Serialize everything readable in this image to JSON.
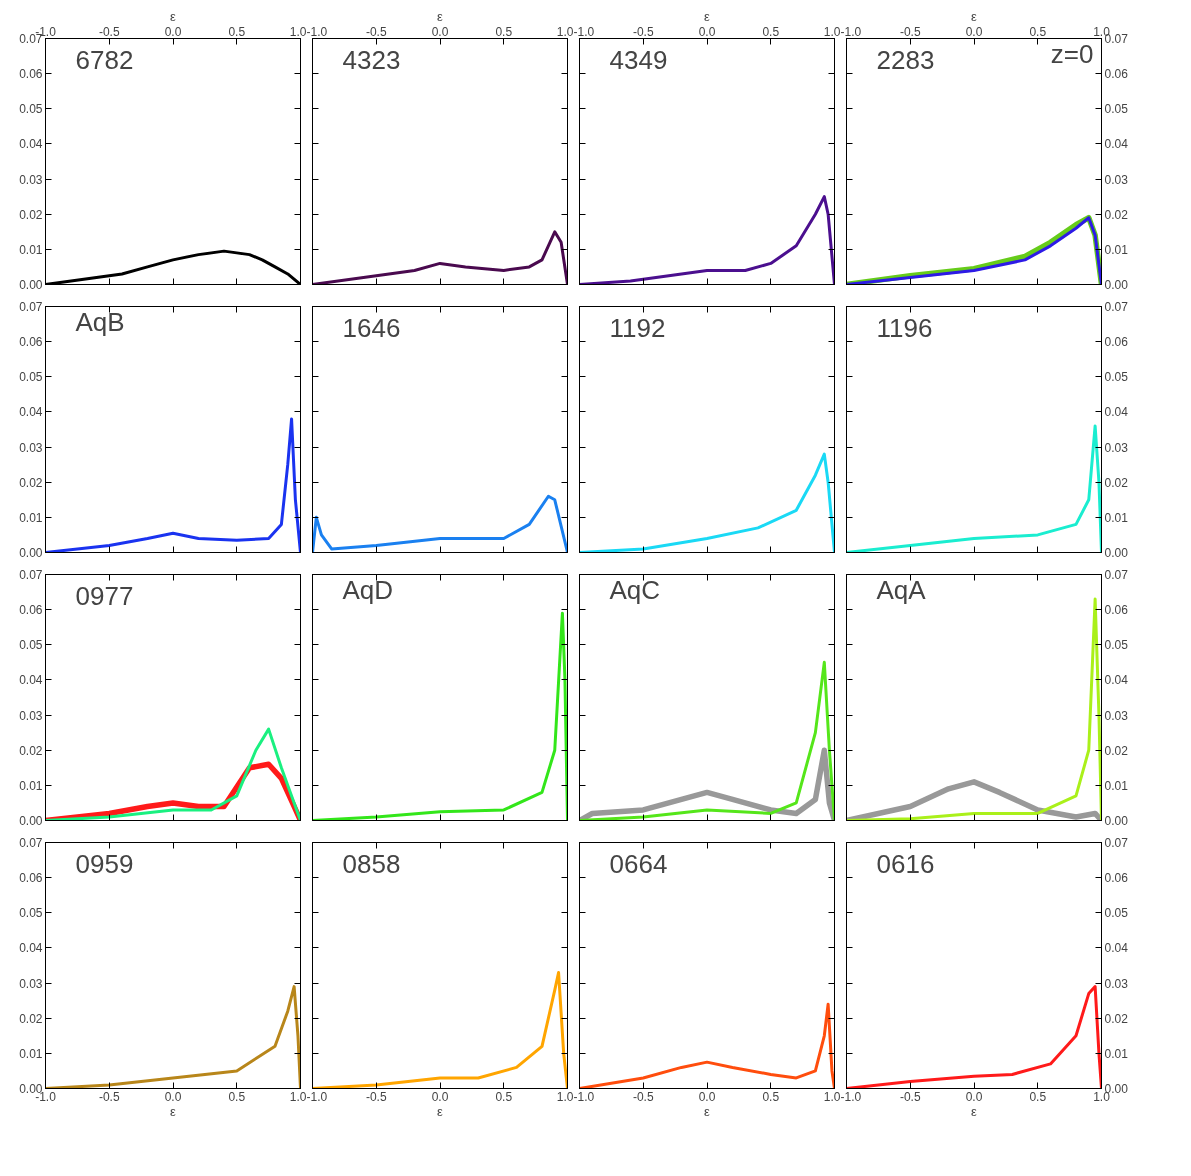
{
  "chart_data": [
    {
      "type": "line",
      "xlim": [
        -1,
        1
      ],
      "ylim": [
        0,
        0.07
      ],
      "x2lim": [
        -1,
        1
      ],
      "x2label": "ε",
      "tick_labels": "y",
      "annotations": [
        "6782"
      ],
      "xticks": [
        {
          "value": -1,
          "label": null
        },
        {
          "value": -0.5,
          "label": null
        },
        {
          "value": 0,
          "label": null
        },
        {
          "value": 0.5,
          "label": null
        },
        {
          "value": 1,
          "label": null
        }
      ],
      "x2ticks": [
        {
          "value": -1,
          "label": "-1.0"
        },
        {
          "value": -0.5,
          "label": "-0.5"
        },
        {
          "value": 0,
          "label": "0.0"
        },
        {
          "value": 0.5,
          "label": "0.5"
        },
        {
          "value": 1,
          "label": "1.0"
        }
      ],
      "yticks": [
        {
          "value": 0,
          "label": "0.00"
        },
        {
          "value": 0.01,
          "label": "0.01"
        },
        {
          "value": 0.02,
          "label": "0.02"
        },
        {
          "value": 0.03,
          "label": "0.03"
        },
        {
          "value": 0.04,
          "label": "0.04"
        },
        {
          "value": 0.05,
          "label": "0.05"
        },
        {
          "value": 0.06,
          "label": "0.06"
        },
        {
          "value": 0.07,
          "label": "0.07"
        }
      ],
      "series": [
        {
          "color": "#000000",
          "x": [
            -1,
            -0.8,
            -0.6,
            -0.4,
            -0.2,
            0,
            0.2,
            0.4,
            0.5,
            0.6,
            0.7,
            0.8,
            0.9,
            1
          ],
          "values": [
            0,
            0.001,
            0.002,
            0.003,
            0.005,
            0.007,
            0.0085,
            0.0095,
            0.009,
            0.0085,
            0.007,
            0.005,
            0.003,
            0
          ]
        }
      ]
    },
    {
      "type": "line",
      "xlim": [
        -1,
        1
      ],
      "ylim": [
        0,
        0.07
      ],
      "x2lim": [
        -1,
        1
      ],
      "x2label": "ε",
      "tick_labels": false,
      "annotations": [
        "4323"
      ],
      "xticks": [
        {
          "value": -1,
          "label": null
        },
        {
          "value": -0.5,
          "label": null
        },
        {
          "value": 0,
          "label": null
        },
        {
          "value": 0.5,
          "label": null
        },
        {
          "value": 1,
          "label": null
        }
      ],
      "x2ticks": [
        {
          "value": -1,
          "label": "-1.0"
        },
        {
          "value": -0.5,
          "label": "-0.5"
        },
        {
          "value": 0,
          "label": "0.0"
        },
        {
          "value": 0.5,
          "label": "0.5"
        },
        {
          "value": 1,
          "label": "1.0"
        }
      ],
      "yticks": [
        {
          "value": 0,
          "label": null
        },
        {
          "value": 0.01,
          "label": null
        },
        {
          "value": 0.02,
          "label": null
        },
        {
          "value": 0.03,
          "label": null
        },
        {
          "value": 0.04,
          "label": null
        },
        {
          "value": 0.05,
          "label": null
        },
        {
          "value": 0.06,
          "label": null
        },
        {
          "value": 0.07,
          "label": null
        }
      ],
      "series": [
        {
          "color": "#4a0a4f",
          "x": [
            -1,
            -0.6,
            -0.2,
            0,
            0.2,
            0.5,
            0.7,
            0.8,
            0.9,
            0.95,
            1
          ],
          "values": [
            0,
            0.002,
            0.004,
            0.006,
            0.005,
            0.004,
            0.005,
            0.007,
            0.015,
            0.012,
            0
          ]
        }
      ]
    },
    {
      "type": "line",
      "xlim": [
        -1,
        1
      ],
      "ylim": [
        0,
        0.07
      ],
      "x2lim": [
        -1,
        1
      ],
      "x2label": "ε",
      "tick_labels": false,
      "annotations": [
        "4349"
      ],
      "xticks": [
        {
          "value": -1,
          "label": null
        },
        {
          "value": -0.5,
          "label": null
        },
        {
          "value": 0,
          "label": null
        },
        {
          "value": 0.5,
          "label": null
        },
        {
          "value": 1,
          "label": null
        }
      ],
      "x2ticks": [
        {
          "value": -1,
          "label": "-1.0"
        },
        {
          "value": -0.5,
          "label": "-0.5"
        },
        {
          "value": 0,
          "label": "0.0"
        },
        {
          "value": 0.5,
          "label": "0.5"
        },
        {
          "value": 1,
          "label": "1.0"
        }
      ],
      "yticks": [
        {
          "value": 0,
          "label": null
        },
        {
          "value": 0.01,
          "label": null
        },
        {
          "value": 0.02,
          "label": null
        },
        {
          "value": 0.03,
          "label": null
        },
        {
          "value": 0.04,
          "label": null
        },
        {
          "value": 0.05,
          "label": null
        },
        {
          "value": 0.06,
          "label": null
        },
        {
          "value": 0.07,
          "label": null
        }
      ],
      "series": [
        {
          "color": "#4b0f8f",
          "x": [
            -1,
            -0.6,
            -0.2,
            0,
            0.3,
            0.5,
            0.7,
            0.85,
            0.92,
            0.95,
            1
          ],
          "values": [
            0,
            0.001,
            0.003,
            0.004,
            0.004,
            0.006,
            0.011,
            0.02,
            0.025,
            0.02,
            0
          ]
        }
      ]
    },
    {
      "type": "line",
      "xlim": [
        -1,
        1
      ],
      "y2lim": [
        0,
        0.07
      ],
      "x2lim": [
        -1,
        1
      ],
      "x2label": "ε",
      "tick_labels": "y",
      "annotations": [
        "2283",
        "z=0"
      ],
      "xticks": [
        {
          "value": -1,
          "label": null
        },
        {
          "value": -0.5,
          "label": null
        },
        {
          "value": 0,
          "label": null
        },
        {
          "value": 0.5,
          "label": null
        },
        {
          "value": 1,
          "label": null
        }
      ],
      "x2ticks": [
        {
          "value": -1,
          "label": "-1.0"
        },
        {
          "value": -0.5,
          "label": "-0.5"
        },
        {
          "value": 0,
          "label": "0.0"
        },
        {
          "value": 0.5,
          "label": "0.5"
        },
        {
          "value": 1,
          "label": "1.0"
        }
      ],
      "y2ticks": [
        {
          "value": 0,
          "label": "0.00"
        },
        {
          "value": 0.01,
          "label": "0.01"
        },
        {
          "value": 0.02,
          "label": "0.02"
        },
        {
          "value": 0.03,
          "label": "0.03"
        },
        {
          "value": 0.04,
          "label": "0.04"
        },
        {
          "value": 0.05,
          "label": "0.05"
        },
        {
          "value": 0.06,
          "label": "0.06"
        },
        {
          "value": 0.07,
          "label": "0.07"
        }
      ],
      "series": [
        {
          "color": "#66cc1a",
          "axis": "y2",
          "x": [
            -1,
            -0.5,
            0,
            0.4,
            0.6,
            0.8,
            0.9,
            0.95,
            1
          ],
          "values": [
            0,
            0.0025,
            0.0045,
            0.008,
            0.012,
            0.017,
            0.019,
            0.014,
            0
          ]
        },
        {
          "color": "#2d1ae6",
          "axis": "y2",
          "x": [
            -1,
            -0.5,
            0,
            0.4,
            0.6,
            0.8,
            0.9,
            0.95,
            1
          ],
          "values": [
            0,
            0.002,
            0.004,
            0.007,
            0.011,
            0.016,
            0.019,
            0.014,
            0
          ]
        }
      ]
    },
    {
      "type": "line",
      "xlim": [
        -1,
        1
      ],
      "ylim": [
        0,
        0.07
      ],
      "tick_labels": "y",
      "annotations": [
        "AqB"
      ],
      "xticks": [
        {
          "value": -1,
          "label": null
        },
        {
          "value": -0.5,
          "label": null
        },
        {
          "value": 0,
          "label": null
        },
        {
          "value": 0.5,
          "label": null
        },
        {
          "value": 1,
          "label": null
        }
      ],
      "yticks": [
        {
          "value": 0,
          "label": "0.00"
        },
        {
          "value": 0.01,
          "label": "0.01"
        },
        {
          "value": 0.02,
          "label": "0.02"
        },
        {
          "value": 0.03,
          "label": "0.03"
        },
        {
          "value": 0.04,
          "label": "0.04"
        },
        {
          "value": 0.05,
          "label": "0.05"
        },
        {
          "value": 0.06,
          "label": "0.06"
        },
        {
          "value": 0.07,
          "label": "0.07"
        }
      ],
      "series": [
        {
          "color": "#1a33f0",
          "x": [
            -1,
            -0.5,
            -0.2,
            0,
            0.2,
            0.5,
            0.75,
            0.85,
            0.9,
            0.93,
            0.96,
            1
          ],
          "values": [
            0,
            0.002,
            0.004,
            0.0055,
            0.004,
            0.0035,
            0.004,
            0.008,
            0.025,
            0.038,
            0.015,
            0
          ]
        }
      ]
    },
    {
      "type": "line",
      "xlim": [
        -1,
        1
      ],
      "ylim": [
        0,
        0.07
      ],
      "tick_labels": false,
      "annotations": [
        "1646"
      ],
      "xticks": [
        {
          "value": -1,
          "label": null
        },
        {
          "value": -0.5,
          "label": null
        },
        {
          "value": 0,
          "label": null
        },
        {
          "value": 0.5,
          "label": null
        },
        {
          "value": 1,
          "label": null
        }
      ],
      "yticks": [
        {
          "value": 0,
          "label": null
        },
        {
          "value": 0.01,
          "label": null
        },
        {
          "value": 0.02,
          "label": null
        },
        {
          "value": 0.03,
          "label": null
        },
        {
          "value": 0.04,
          "label": null
        },
        {
          "value": 0.05,
          "label": null
        },
        {
          "value": 0.06,
          "label": null
        },
        {
          "value": 0.07,
          "label": null
        }
      ],
      "series": [
        {
          "color": "#1a80f0",
          "x": [
            -1,
            -0.97,
            -0.93,
            -0.85,
            -0.5,
            0,
            0.5,
            0.7,
            0.85,
            0.9,
            1
          ],
          "values": [
            0,
            0.01,
            0.005,
            0.001,
            0.002,
            0.004,
            0.004,
            0.008,
            0.016,
            0.015,
            0
          ]
        }
      ]
    },
    {
      "type": "line",
      "xlim": [
        -1,
        1
      ],
      "ylim": [
        0,
        0.07
      ],
      "tick_labels": false,
      "annotations": [
        "1192"
      ],
      "xticks": [
        {
          "value": -1,
          "label": null
        },
        {
          "value": -0.5,
          "label": null
        },
        {
          "value": 0,
          "label": null
        },
        {
          "value": 0.5,
          "label": null
        },
        {
          "value": 1,
          "label": null
        }
      ],
      "yticks": [
        {
          "value": 0,
          "label": null
        },
        {
          "value": 0.01,
          "label": null
        },
        {
          "value": 0.02,
          "label": null
        },
        {
          "value": 0.03,
          "label": null
        },
        {
          "value": 0.04,
          "label": null
        },
        {
          "value": 0.05,
          "label": null
        },
        {
          "value": 0.06,
          "label": null
        },
        {
          "value": 0.07,
          "label": null
        }
      ],
      "series": [
        {
          "color": "#1ad9f5",
          "x": [
            -1,
            -0.5,
            0,
            0.4,
            0.7,
            0.85,
            0.92,
            0.95,
            1
          ],
          "values": [
            0,
            0.001,
            0.004,
            0.007,
            0.012,
            0.022,
            0.028,
            0.02,
            0
          ]
        }
      ]
    },
    {
      "type": "line",
      "xlim": [
        -1,
        1
      ],
      "y2lim": [
        0,
        0.07
      ],
      "tick_labels": "y",
      "annotations": [
        "1196"
      ],
      "xticks": [
        {
          "value": -1,
          "label": null
        },
        {
          "value": -0.5,
          "label": null
        },
        {
          "value": 0,
          "label": null
        },
        {
          "value": 0.5,
          "label": null
        },
        {
          "value": 1,
          "label": null
        }
      ],
      "y2ticks": [
        {
          "value": 0,
          "label": "0.00"
        },
        {
          "value": 0.01,
          "label": "0.01"
        },
        {
          "value": 0.02,
          "label": "0.02"
        },
        {
          "value": 0.03,
          "label": "0.03"
        },
        {
          "value": 0.04,
          "label": "0.04"
        },
        {
          "value": 0.05,
          "label": "0.05"
        },
        {
          "value": 0.06,
          "label": "0.06"
        },
        {
          "value": 0.07,
          "label": "0.07"
        }
      ],
      "series": [
        {
          "color": "#1aedd0",
          "axis": "y2",
          "x": [
            -1,
            -0.5,
            0,
            0.5,
            0.8,
            0.9,
            0.95,
            0.98,
            1
          ],
          "values": [
            0,
            0.002,
            0.004,
            0.005,
            0.008,
            0.015,
            0.036,
            0.02,
            0
          ]
        }
      ]
    },
    {
      "type": "line",
      "xlim": [
        -1,
        1
      ],
      "ylim": [
        0,
        0.07
      ],
      "tick_labels": "y",
      "annotations": [
        "0977"
      ],
      "xticks": [
        {
          "value": -1,
          "label": null
        },
        {
          "value": -0.5,
          "label": null
        },
        {
          "value": 0,
          "label": null
        },
        {
          "value": 0.5,
          "label": null
        },
        {
          "value": 1,
          "label": null
        }
      ],
      "yticks": [
        {
          "value": 0,
          "label": "0.00"
        },
        {
          "value": 0.01,
          "label": "0.01"
        },
        {
          "value": 0.02,
          "label": "0.02"
        },
        {
          "value": 0.03,
          "label": "0.03"
        },
        {
          "value": 0.04,
          "label": "0.04"
        },
        {
          "value": 0.05,
          "label": "0.05"
        },
        {
          "value": 0.06,
          "label": "0.06"
        },
        {
          "value": 0.07,
          "label": "0.07"
        }
      ],
      "series": [
        {
          "color": "#ff1a1a",
          "x": [
            -1,
            -0.5,
            -0.2,
            0,
            0.2,
            0.4,
            0.6,
            0.75,
            0.85,
            0.95,
            1
          ],
          "values": [
            0,
            0.002,
            0.004,
            0.005,
            0.004,
            0.004,
            0.015,
            0.016,
            0.012,
            0.004,
            0
          ]
        },
        {
          "color": "#1af080",
          "x": [
            -1,
            -0.5,
            0,
            0.3,
            0.5,
            0.65,
            0.75,
            0.85,
            0.95,
            1
          ],
          "values": [
            0,
            0.001,
            0.003,
            0.003,
            0.007,
            0.02,
            0.026,
            0.015,
            0.005,
            0
          ]
        }
      ]
    },
    {
      "type": "line",
      "xlim": [
        -1,
        1
      ],
      "ylim": [
        0,
        0.07
      ],
      "tick_labels": false,
      "annotations": [
        "AqD"
      ],
      "xticks": [
        {
          "value": -1,
          "label": null
        },
        {
          "value": -0.5,
          "label": null
        },
        {
          "value": 0,
          "label": null
        },
        {
          "value": 0.5,
          "label": null
        },
        {
          "value": 1,
          "label": null
        }
      ],
      "yticks": [
        {
          "value": 0,
          "label": null
        },
        {
          "value": 0.01,
          "label": null
        },
        {
          "value": 0.02,
          "label": null
        },
        {
          "value": 0.03,
          "label": null
        },
        {
          "value": 0.04,
          "label": null
        },
        {
          "value": 0.05,
          "label": null
        },
        {
          "value": 0.06,
          "label": null
        },
        {
          "value": 0.07,
          "label": null
        }
      ],
      "series": [
        {
          "color": "#33e61a",
          "x": [
            -1,
            -0.5,
            0,
            0.5,
            0.8,
            0.9,
            0.96,
            0.98,
            1
          ],
          "values": [
            0,
            0.001,
            0.0025,
            0.003,
            0.008,
            0.02,
            0.059,
            0.04,
            0
          ]
        }
      ]
    },
    {
      "type": "line",
      "xlim": [
        -1,
        1
      ],
      "ylim": [
        0,
        0.07
      ],
      "tick_labels": false,
      "annotations": [
        "AqC"
      ],
      "xticks": [
        {
          "value": -1,
          "label": null
        },
        {
          "value": -0.5,
          "label": null
        },
        {
          "value": 0,
          "label": null
        },
        {
          "value": 0.5,
          "label": null
        },
        {
          "value": 1,
          "label": null
        }
      ],
      "yticks": [
        {
          "value": 0,
          "label": null
        },
        {
          "value": 0.01,
          "label": null
        },
        {
          "value": 0.02,
          "label": null
        },
        {
          "value": 0.03,
          "label": null
        },
        {
          "value": 0.04,
          "label": null
        },
        {
          "value": 0.05,
          "label": null
        },
        {
          "value": 0.06,
          "label": null
        },
        {
          "value": 0.07,
          "label": null
        }
      ],
      "series": [
        {
          "color": "#999999",
          "x": [
            -1,
            -0.9,
            -0.5,
            -0.2,
            0,
            0.2,
            0.5,
            0.7,
            0.85,
            0.92,
            0.96,
            1
          ],
          "values": [
            0,
            0.002,
            0.003,
            0.006,
            0.008,
            0.006,
            0.003,
            0.002,
            0.006,
            0.02,
            0.005,
            0
          ]
        },
        {
          "color": "#55e61a",
          "x": [
            -1,
            -0.5,
            0,
            0.5,
            0.7,
            0.85,
            0.92,
            0.96,
            1
          ],
          "values": [
            0,
            0.001,
            0.003,
            0.002,
            0.005,
            0.025,
            0.045,
            0.02,
            0
          ]
        }
      ]
    },
    {
      "type": "line",
      "xlim": [
        -1,
        1
      ],
      "y2lim": [
        0,
        0.07
      ],
      "tick_labels": "y",
      "annotations": [
        "AqA"
      ],
      "xticks": [
        {
          "value": -1,
          "label": null
        },
        {
          "value": -0.5,
          "label": null
        },
        {
          "value": 0,
          "label": null
        },
        {
          "value": 0.5,
          "label": null
        },
        {
          "value": 1,
          "label": null
        }
      ],
      "y2ticks": [
        {
          "value": 0,
          "label": "0.00"
        },
        {
          "value": 0.01,
          "label": "0.01"
        },
        {
          "value": 0.02,
          "label": "0.02"
        },
        {
          "value": 0.03,
          "label": "0.03"
        },
        {
          "value": 0.04,
          "label": "0.04"
        },
        {
          "value": 0.05,
          "label": "0.05"
        },
        {
          "value": 0.06,
          "label": "0.06"
        },
        {
          "value": 0.07,
          "label": "0.07"
        }
      ],
      "series": [
        {
          "color": "#999999",
          "axis": "y2",
          "x": [
            -1,
            -0.5,
            -0.2,
            0,
            0.2,
            0.5,
            0.8,
            0.95,
            1
          ],
          "values": [
            0,
            0.004,
            0.009,
            0.011,
            0.008,
            0.003,
            0.001,
            0.002,
            0
          ]
        },
        {
          "color": "#aaf01a",
          "axis": "y2",
          "x": [
            -1,
            -0.5,
            0,
            0.5,
            0.8,
            0.9,
            0.95,
            0.98,
            1
          ],
          "values": [
            0,
            0.0005,
            0.002,
            0.002,
            0.007,
            0.02,
            0.063,
            0.03,
            0
          ]
        }
      ]
    },
    {
      "type": "line",
      "xlim": [
        -1,
        1
      ],
      "ylim": [
        0,
        0.07
      ],
      "xlabel": "ε",
      "annotations": [
        "0959"
      ],
      "xticks": [
        {
          "value": -1,
          "label": "-1.0"
        },
        {
          "value": -0.5,
          "label": "-0.5"
        },
        {
          "value": 0,
          "label": "0.0"
        },
        {
          "value": 0.5,
          "label": "0.5"
        },
        {
          "value": 1,
          "label": "1.0"
        }
      ],
      "yticks": [
        {
          "value": 0,
          "label": "0.00"
        },
        {
          "value": 0.01,
          "label": "0.01"
        },
        {
          "value": 0.02,
          "label": "0.02"
        },
        {
          "value": 0.03,
          "label": "0.03"
        },
        {
          "value": 0.04,
          "label": "0.04"
        },
        {
          "value": 0.05,
          "label": "0.05"
        },
        {
          "value": 0.06,
          "label": "0.06"
        },
        {
          "value": 0.07,
          "label": "0.07"
        }
      ],
      "series": [
        {
          "color": "#b8861a",
          "x": [
            -1,
            -0.5,
            0,
            0.5,
            0.8,
            0.9,
            0.95,
            0.98,
            1
          ],
          "values": [
            0,
            0.001,
            0.003,
            0.005,
            0.012,
            0.022,
            0.029,
            0.015,
            0
          ]
        }
      ]
    },
    {
      "type": "line",
      "xlim": [
        -1,
        1
      ],
      "ylim": [
        0,
        0.07
      ],
      "xlabel": "ε",
      "tick_labels": "x",
      "annotations": [
        "0858"
      ],
      "xticks": [
        {
          "value": -1,
          "label": "-1.0"
        },
        {
          "value": -0.5,
          "label": "-0.5"
        },
        {
          "value": 0,
          "label": "0.0"
        },
        {
          "value": 0.5,
          "label": "0.5"
        },
        {
          "value": 1,
          "label": "1.0"
        }
      ],
      "yticks": [
        {
          "value": 0,
          "label": null
        },
        {
          "value": 0.01,
          "label": null
        },
        {
          "value": 0.02,
          "label": null
        },
        {
          "value": 0.03,
          "label": null
        },
        {
          "value": 0.04,
          "label": null
        },
        {
          "value": 0.05,
          "label": null
        },
        {
          "value": 0.06,
          "label": null
        },
        {
          "value": 0.07,
          "label": null
        }
      ],
      "series": [
        {
          "color": "#ffa500",
          "x": [
            -1,
            -0.5,
            0,
            0.3,
            0.6,
            0.8,
            0.9,
            0.93,
            0.97,
            1
          ],
          "values": [
            0,
            0.001,
            0.003,
            0.003,
            0.006,
            0.012,
            0.028,
            0.033,
            0.01,
            0
          ]
        }
      ]
    },
    {
      "type": "line",
      "xlim": [
        -1,
        1
      ],
      "ylim": [
        0,
        0.07
      ],
      "xlabel": "ε",
      "tick_labels": "x",
      "annotations": [
        "0664"
      ],
      "xticks": [
        {
          "value": -1,
          "label": "-1.0"
        },
        {
          "value": -0.5,
          "label": "-0.5"
        },
        {
          "value": 0,
          "label": "0.0"
        },
        {
          "value": 0.5,
          "label": "0.5"
        },
        {
          "value": 1,
          "label": "1.0"
        }
      ],
      "yticks": [
        {
          "value": 0,
          "label": null
        },
        {
          "value": 0.01,
          "label": null
        },
        {
          "value": 0.02,
          "label": null
        },
        {
          "value": 0.03,
          "label": null
        },
        {
          "value": 0.04,
          "label": null
        },
        {
          "value": 0.05,
          "label": null
        },
        {
          "value": 0.06,
          "label": null
        },
        {
          "value": 0.07,
          "label": null
        }
      ],
      "series": [
        {
          "color": "#ff4d0d",
          "x": [
            -1,
            -0.5,
            -0.2,
            0,
            0.2,
            0.5,
            0.7,
            0.85,
            0.92,
            0.95,
            0.98,
            1
          ],
          "values": [
            0,
            0.003,
            0.006,
            0.0075,
            0.006,
            0.004,
            0.003,
            0.005,
            0.015,
            0.024,
            0.005,
            0
          ]
        }
      ]
    },
    {
      "type": "line",
      "xlim": [
        -1,
        1
      ],
      "y2lim": [
        0,
        0.07
      ],
      "xlabel": "ε",
      "annotations": [
        "0616"
      ],
      "xticks": [
        {
          "value": -1,
          "label": "-1.0"
        },
        {
          "value": -0.5,
          "label": "-0.5"
        },
        {
          "value": 0,
          "label": "0.0"
        },
        {
          "value": 0.5,
          "label": "0.5"
        },
        {
          "value": 1,
          "label": "1.0"
        }
      ],
      "y2ticks": [
        {
          "value": 0,
          "label": "0.00"
        },
        {
          "value": 0.01,
          "label": "0.01"
        },
        {
          "value": 0.02,
          "label": "0.02"
        },
        {
          "value": 0.03,
          "label": "0.03"
        },
        {
          "value": 0.04,
          "label": "0.04"
        },
        {
          "value": 0.05,
          "label": "0.05"
        },
        {
          "value": 0.06,
          "label": "0.06"
        },
        {
          "value": 0.07,
          "label": "0.07"
        }
      ],
      "series": [
        {
          "color": "#ff1a1a",
          "axis": "y2",
          "x": [
            -1,
            -0.5,
            0,
            0.3,
            0.6,
            0.8,
            0.9,
            0.95,
            0.98,
            1
          ],
          "values": [
            0,
            0.002,
            0.0035,
            0.004,
            0.007,
            0.015,
            0.027,
            0.029,
            0.01,
            0
          ]
        }
      ]
    }
  ]
}
